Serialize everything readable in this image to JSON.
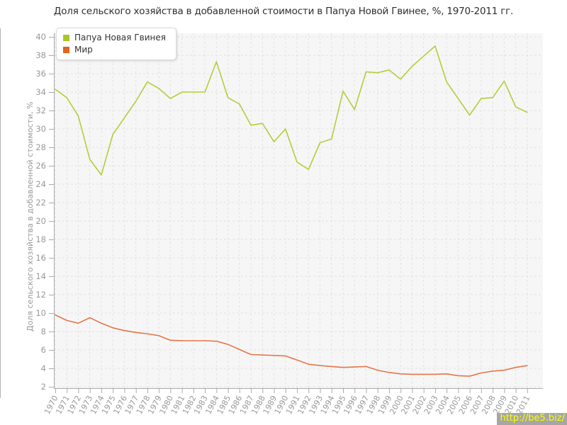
{
  "title": "Доля сельского хозяйства в добавленной стоимости в Папуа Новой Гвинее, %, 1970-2011 гг.",
  "watermark": "http://be5.biz/",
  "legend": {
    "items": [
      {
        "label": "Папуа Новая Гвинея",
        "color": "#a7c821"
      },
      {
        "label": "Мир",
        "color": "#e2641f"
      }
    ]
  },
  "chart_data": {
    "type": "line",
    "title": "Доля сельского хозяйства в добавленной стоимости в Папуа Новой Гвинее, %, 1970-2011 гг.",
    "xlabel": "",
    "ylabel": "Доля сельского хозяйства в добавленной стоимости, %",
    "ylim": [
      2,
      40
    ],
    "ytick_step": 2,
    "grid": true,
    "legend_position": "top-left",
    "x": [
      1970,
      1971,
      1972,
      1973,
      1974,
      1975,
      1976,
      1977,
      1978,
      1979,
      1980,
      1981,
      1982,
      1983,
      1984,
      1985,
      1986,
      1987,
      1988,
      1989,
      1990,
      1991,
      1992,
      1993,
      1994,
      1995,
      1996,
      1997,
      1998,
      1999,
      2000,
      2001,
      2002,
      2003,
      2004,
      2005,
      2006,
      2007,
      2008,
      2009,
      2010,
      2011
    ],
    "series": [
      {
        "name": "Папуа Новая Гвинея",
        "color": "#b4cd3a",
        "values": [
          34.3,
          33.4,
          31.4,
          26.7,
          25.0,
          29.4,
          31.2,
          33.0,
          35.1,
          34.4,
          33.3,
          34.0,
          34.0,
          34.0,
          37.3,
          33.4,
          32.7,
          30.4,
          30.6,
          28.6,
          30.0,
          26.4,
          25.6,
          28.5,
          28.9,
          34.1,
          32.1,
          36.2,
          36.1,
          36.4,
          35.4,
          36.8,
          37.9,
          39.0,
          35.1,
          33.3,
          31.5,
          33.3,
          33.4,
          35.2,
          32.4,
          31.8
        ]
      },
      {
        "name": "Мир",
        "color": "#e5764a",
        "values": [
          9.8,
          9.2,
          8.9,
          9.5,
          8.9,
          8.4,
          8.1,
          7.9,
          7.75,
          7.55,
          7.05,
          7.0,
          7.0,
          7.0,
          6.95,
          6.6,
          6.05,
          5.5,
          5.45,
          5.4,
          5.35,
          4.9,
          4.45,
          4.3,
          4.2,
          4.1,
          4.15,
          4.2,
          3.8,
          3.55,
          3.4,
          3.35,
          3.35,
          3.35,
          3.4,
          3.2,
          3.15,
          3.5,
          3.7,
          3.8,
          4.1,
          4.3
        ]
      }
    ],
    "colors": {
      "plot_bg": "#f6f6f6",
      "grid": "#e2e2e2",
      "axis": "#aaaaaa",
      "tick_label": "#999999"
    }
  }
}
